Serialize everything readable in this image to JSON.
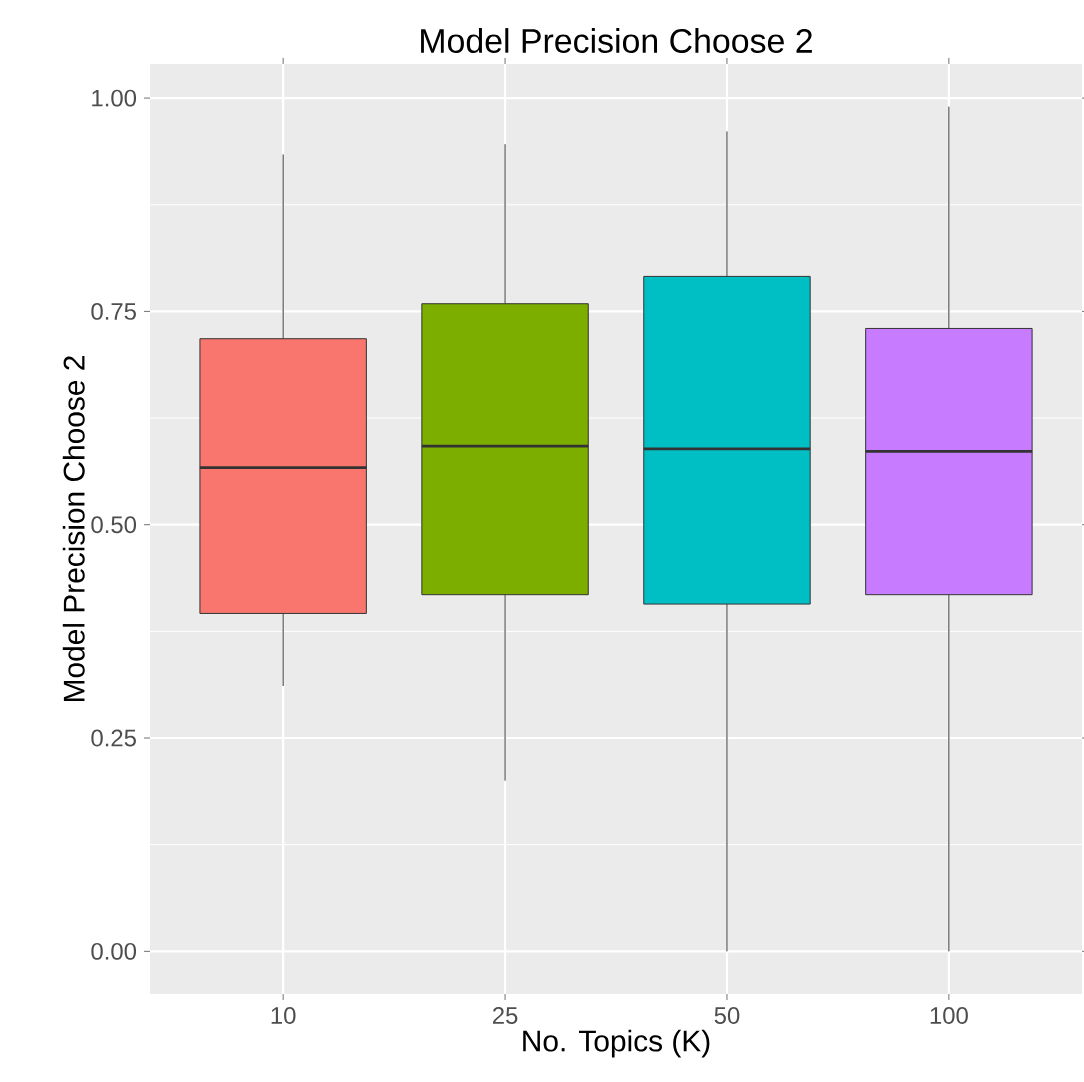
{
  "chart_data": {
    "type": "box",
    "title": "Model Precision Choose 2",
    "xlabel": "No. Topics (K)",
    "ylabel": "Model Precision Choose 2",
    "categories": [
      "10",
      "25",
      "50",
      "100"
    ],
    "boxes": [
      {
        "low": 0.311,
        "q1": 0.396,
        "median": 0.567,
        "q3": 0.718,
        "high": 0.934
      },
      {
        "low": 0.2,
        "q1": 0.418,
        "median": 0.592,
        "q3": 0.759,
        "high": 0.946
      },
      {
        "low": 0.0,
        "q1": 0.407,
        "median": 0.589,
        "q3": 0.791,
        "high": 0.961
      },
      {
        "low": 0.0,
        "q1": 0.418,
        "median": 0.586,
        "q3": 0.73,
        "high": 0.99
      }
    ],
    "colors": [
      "#f8766d",
      "#7cae00",
      "#00bfc4",
      "#c77cff"
    ],
    "ylim": [
      -0.05,
      1.04
    ],
    "yticks": [
      {
        "value": 0,
        "label": "0.00"
      },
      {
        "value": 0.25,
        "label": "0.25"
      },
      {
        "value": 0.5,
        "label": "0.50"
      },
      {
        "value": 0.75,
        "label": "0.75"
      },
      {
        "value": 1,
        "label": "1.00"
      }
    ],
    "grid": true
  }
}
